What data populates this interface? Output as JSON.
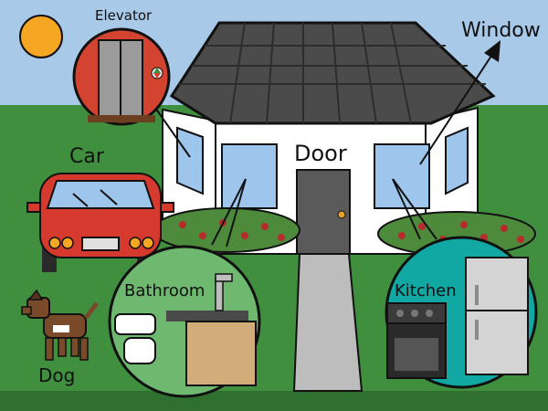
{
  "labels": {
    "elevator": "Elevator",
    "window": "Window",
    "door": "Door",
    "car": "Car",
    "bathroom": "Bathroom",
    "kitchen": "Kitchen",
    "dog": "Dog"
  },
  "icons": [
    "sun-icon",
    "elevator-icon",
    "car-icon",
    "dog-icon",
    "arrow-icon"
  ],
  "colors": {
    "sky": "#a9c9e8",
    "grass": "#3f8f3f",
    "roof": "#4b4b4b",
    "house_wall": "#ffffff",
    "window_glass": "#9ec5ec",
    "door": "#5a5a5a",
    "door_knob": "#e6a32a",
    "path": "#bdbdbd",
    "bush": "#4d8a3b",
    "berries": "#b62b2b",
    "sun": "#f5a623",
    "elevator_bg": "#d2442f",
    "car": "#d63a2f",
    "bathroom_bg": "#6fb86f",
    "kitchen_bg": "#11a7a3",
    "dog": "#7a4b2b",
    "outline": "#111111"
  }
}
